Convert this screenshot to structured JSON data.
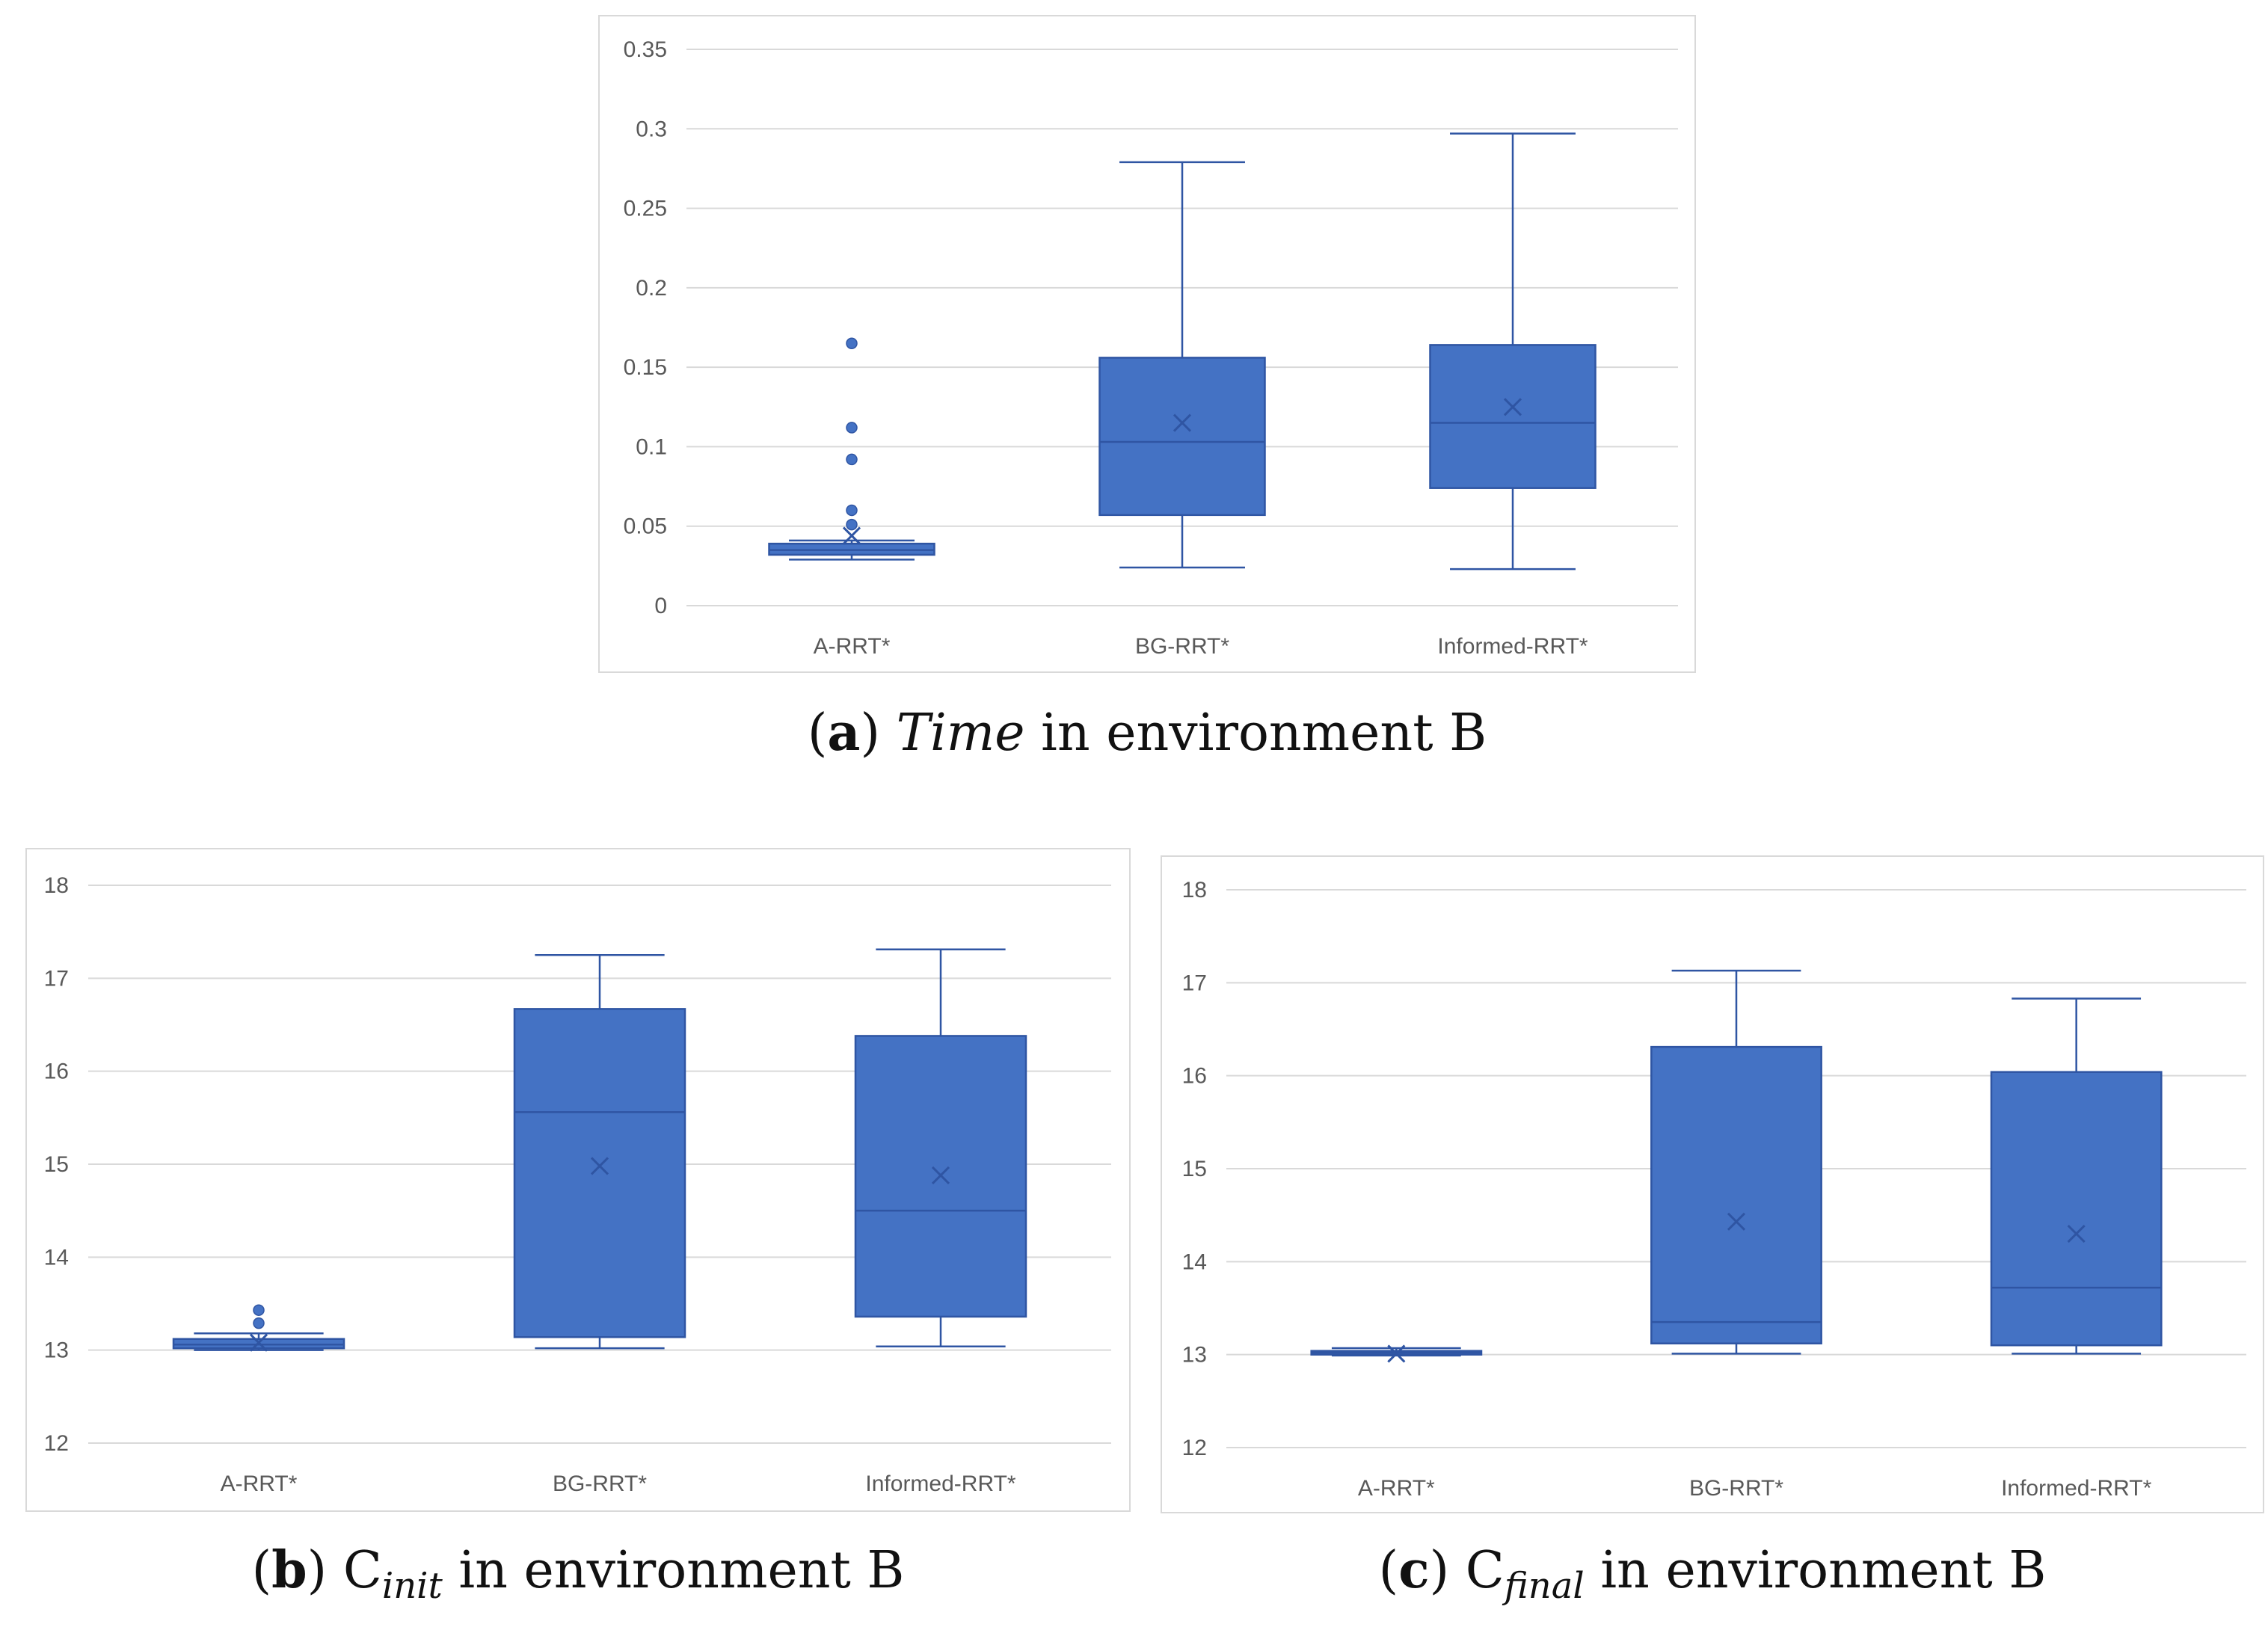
{
  "colors": {
    "box": "#4472c4",
    "stroke": "#2f55a3",
    "grid": "#d9d9d9",
    "text": "#595959"
  },
  "chart_data": [
    {
      "type": "box",
      "panel": "a",
      "caption": {
        "letter": "a",
        "metric": "Time",
        "sub": "",
        "suffix": "in environment B"
      },
      "categories": [
        "A-RRT*",
        "BG-RRT*",
        "Informed-RRT*"
      ],
      "ylim": [
        0,
        0.35
      ],
      "yticks": [
        0,
        0.05,
        0.1,
        0.15,
        0.2,
        0.25,
        0.3,
        0.35
      ],
      "ytick_labels": [
        "0",
        "0.05",
        "0.1",
        "0.15",
        "0.2",
        "0.25",
        "0.3",
        "0.35"
      ],
      "series": [
        {
          "name": "A-RRT*",
          "min": 0.029,
          "q1": 0.032,
          "median": 0.035,
          "q3": 0.039,
          "max": 0.041,
          "mean": 0.044,
          "outliers": [
            0.165,
            0.112,
            0.092,
            0.06,
            0.051
          ]
        },
        {
          "name": "BG-RRT*",
          "min": 0.024,
          "q1": 0.057,
          "median": 0.103,
          "q3": 0.156,
          "max": 0.279,
          "mean": 0.115,
          "outliers": []
        },
        {
          "name": "Informed-RRT*",
          "min": 0.023,
          "q1": 0.074,
          "median": 0.115,
          "q3": 0.164,
          "max": 0.297,
          "mean": 0.125,
          "outliers": []
        }
      ]
    },
    {
      "type": "box",
      "panel": "b",
      "caption": {
        "letter": "b",
        "metric": "C",
        "sub": "init",
        "suffix": "in environment B"
      },
      "categories": [
        "A-RRT*",
        "BG-RRT*",
        "Informed-RRT*"
      ],
      "ylim": [
        12,
        18
      ],
      "yticks": [
        12,
        13,
        14,
        15,
        16,
        17,
        18
      ],
      "ytick_labels": [
        "12",
        "13",
        "14",
        "15",
        "16",
        "17",
        "18"
      ],
      "series": [
        {
          "name": "A-RRT*",
          "min": 13.0,
          "q1": 13.02,
          "median": 13.06,
          "q3": 13.12,
          "max": 13.18,
          "mean": 13.08,
          "outliers": [
            13.43,
            13.29
          ]
        },
        {
          "name": "BG-RRT*",
          "min": 13.02,
          "q1": 13.14,
          "median": 15.56,
          "q3": 16.67,
          "max": 17.25,
          "mean": 14.98,
          "outliers": []
        },
        {
          "name": "Informed-RRT*",
          "min": 13.04,
          "q1": 13.36,
          "median": 14.5,
          "q3": 16.38,
          "max": 17.31,
          "mean": 14.88,
          "outliers": []
        }
      ]
    },
    {
      "type": "box",
      "panel": "c",
      "caption": {
        "letter": "c",
        "metric": "C",
        "sub": "final",
        "suffix": "in environment B"
      },
      "categories": [
        "A-RRT*",
        "BG-RRT*",
        "Informed-RRT*"
      ],
      "ylim": [
        12,
        18
      ],
      "yticks": [
        12,
        13,
        14,
        15,
        16,
        17,
        18
      ],
      "ytick_labels": [
        "12",
        "13",
        "14",
        "15",
        "16",
        "17",
        "18"
      ],
      "series": [
        {
          "name": "A-RRT*",
          "min": 12.99,
          "q1": 13.0,
          "median": 13.02,
          "q3": 13.04,
          "max": 13.07,
          "mean": 13.01,
          "outliers": []
        },
        {
          "name": "BG-RRT*",
          "min": 13.01,
          "q1": 13.12,
          "median": 13.35,
          "q3": 16.31,
          "max": 17.13,
          "mean": 14.43,
          "outliers": []
        },
        {
          "name": "Informed-RRT*",
          "min": 13.01,
          "q1": 13.1,
          "median": 13.72,
          "q3": 16.04,
          "max": 16.83,
          "mean": 14.3,
          "outliers": []
        }
      ]
    }
  ]
}
